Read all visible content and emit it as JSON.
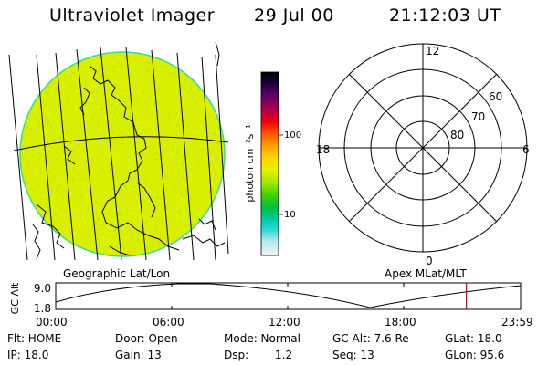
{
  "header": {
    "title": "Ultraviolet Imager",
    "date": "29 Jul 00",
    "time": "21:12:03 UT"
  },
  "colors": {
    "image_fill": "#d8f000",
    "image_edge": "#33dd99",
    "grid_line": "#000000",
    "time_marker": "#dd0000"
  },
  "colorbar": {
    "unit_label": "photon cm⁻²s⁻¹",
    "tick_labels": [
      "100",
      "10"
    ],
    "scale": "log"
  },
  "polar_plot": {
    "mlt_labels": {
      "top": "12",
      "right": "6",
      "bottom": "0",
      "left": "18"
    },
    "lat_labels": [
      "60",
      "70",
      "80"
    ]
  },
  "projection_labels": {
    "geographic": "Geographic Lat/Lon",
    "apex": "Apex MLat/MLT"
  },
  "altitude_plot": {
    "y_label": "GC Alt",
    "y_ticks": [
      "9.0",
      "1.8"
    ],
    "x_ticks": [
      "00:00",
      "06:00",
      "12:00",
      "18:00",
      "23:59"
    ],
    "current_time_hours": 21.2
  },
  "info": {
    "flt": "Flt: HOME",
    "door": "Door: Open",
    "mode": "Mode: Normal",
    "gc_alt": "GC Alt: 7.6 Re",
    "glat": "GLat: 18.0",
    "ip": "IP: 18.0",
    "gain": "Gain: 13",
    "dsp_label": "Dsp:",
    "dsp_value": "1.2",
    "seq": "Seq: 13",
    "glon": "GLon: 95.6"
  }
}
